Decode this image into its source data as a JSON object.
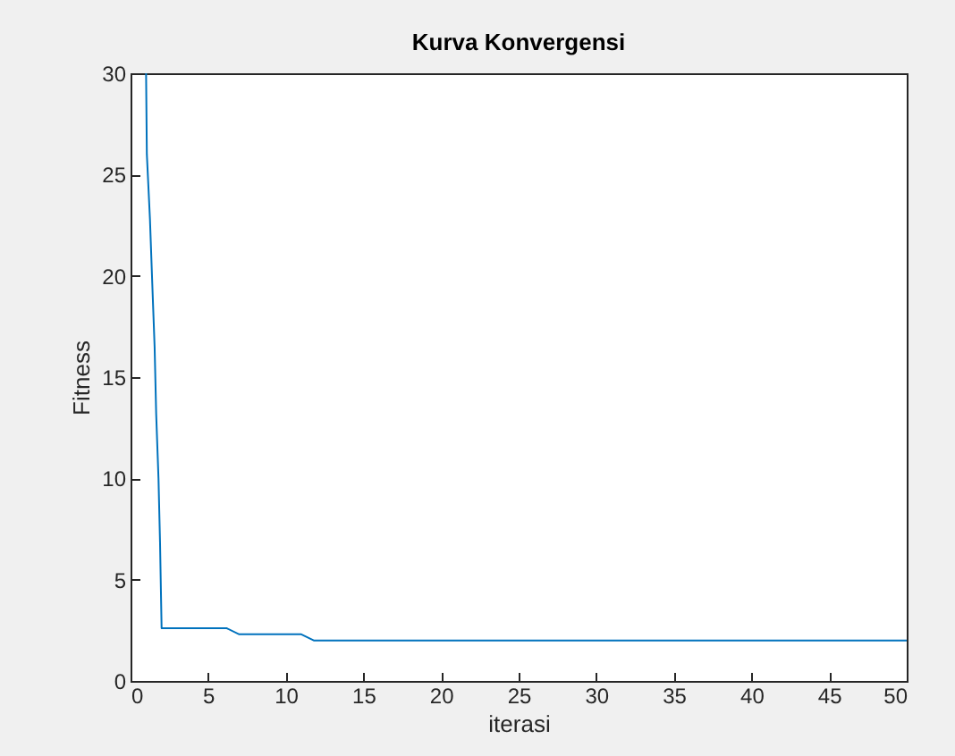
{
  "chart_data": {
    "type": "line",
    "title": "Kurva Konvergensi",
    "xlabel": "iterasi",
    "ylabel": "Fitness",
    "x": [
      1,
      1.05,
      1.25,
      1.4,
      1.55,
      1.65,
      1.8,
      1.9,
      2,
      6.2,
      7,
      11,
      11.8,
      50
    ],
    "series": [
      {
        "color": "#0072bd",
        "values": [
          30,
          26,
          22.8,
          19.6,
          16.5,
          13.2,
          10,
          6.8,
          2.6,
          2.6,
          2.3,
          2.3,
          2,
          2
        ]
      }
    ],
    "xlim": [
      0,
      50
    ],
    "xticks": [
      0,
      5,
      10,
      15,
      20,
      25,
      30,
      35,
      40,
      45,
      50
    ],
    "ylim": [
      0,
      30
    ],
    "yticks": [
      0,
      5,
      10,
      15,
      20,
      25,
      30
    ],
    "grid": false,
    "legend": false,
    "line_style": "solid"
  }
}
